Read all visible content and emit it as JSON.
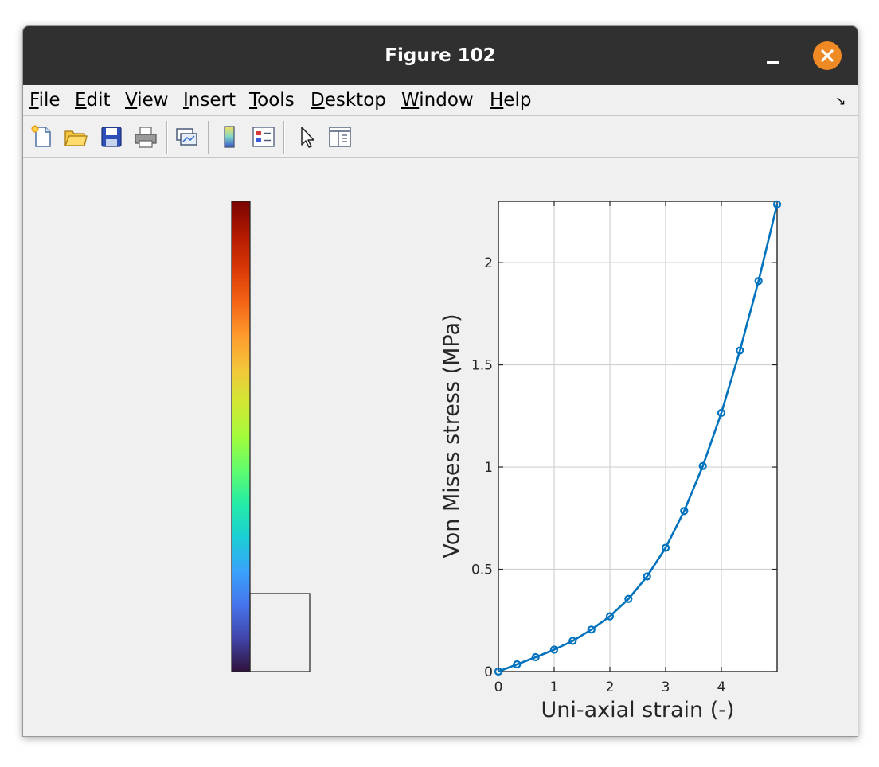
{
  "window": {
    "title": "Figure 102"
  },
  "menu": [
    {
      "mnemonic": "F",
      "rest": "ile"
    },
    {
      "mnemonic": "E",
      "rest": "dit"
    },
    {
      "mnemonic": "V",
      "rest": "iew"
    },
    {
      "mnemonic": "I",
      "rest": "nsert"
    },
    {
      "mnemonic": "T",
      "rest": "ools"
    },
    {
      "mnemonic": "D",
      "rest": "esktop"
    },
    {
      "mnemonic": "W",
      "rest": "indow"
    },
    {
      "mnemonic": "H",
      "rest": "elp"
    }
  ],
  "toolbar": [
    "new-figure-icon",
    "open-file-icon",
    "save-icon",
    "print-icon",
    "link-plot-icon",
    "colorbar-icon",
    "legend-icon",
    "pointer-icon",
    "property-inspector-icon"
  ],
  "colormap": [
    "#30123b",
    "#4145ab",
    "#4675ed",
    "#39a2fc",
    "#1bcfd4",
    "#24eca6",
    "#61fc6c",
    "#a4fc3b",
    "#d1e834",
    "#f3c63a",
    "#fe9b2d",
    "#f36315",
    "#d93806",
    "#b11901",
    "#7a0402"
  ],
  "chart_data": {
    "type": "line",
    "xlabel": "Uni-axial strain (-)",
    "ylabel": "Von Mises stress (MPa)",
    "xlim": [
      0,
      5
    ],
    "ylim": [
      0,
      2.3
    ],
    "xticks": [
      "0",
      "1",
      "2",
      "3",
      "4"
    ],
    "yticks": [
      "0",
      "0.5",
      "1",
      "1.5",
      "2"
    ],
    "grid": true,
    "color": "#0072bd",
    "x": [
      0,
      0.333,
      0.667,
      1.0,
      1.333,
      1.667,
      2.0,
      2.333,
      2.667,
      3.0,
      3.333,
      3.667,
      4.0,
      4.333,
      4.667,
      5.0
    ],
    "y": [
      0,
      0.035,
      0.07,
      0.107,
      0.15,
      0.205,
      0.27,
      0.355,
      0.465,
      0.605,
      0.785,
      1.005,
      1.265,
      1.57,
      1.91,
      2.285
    ]
  }
}
